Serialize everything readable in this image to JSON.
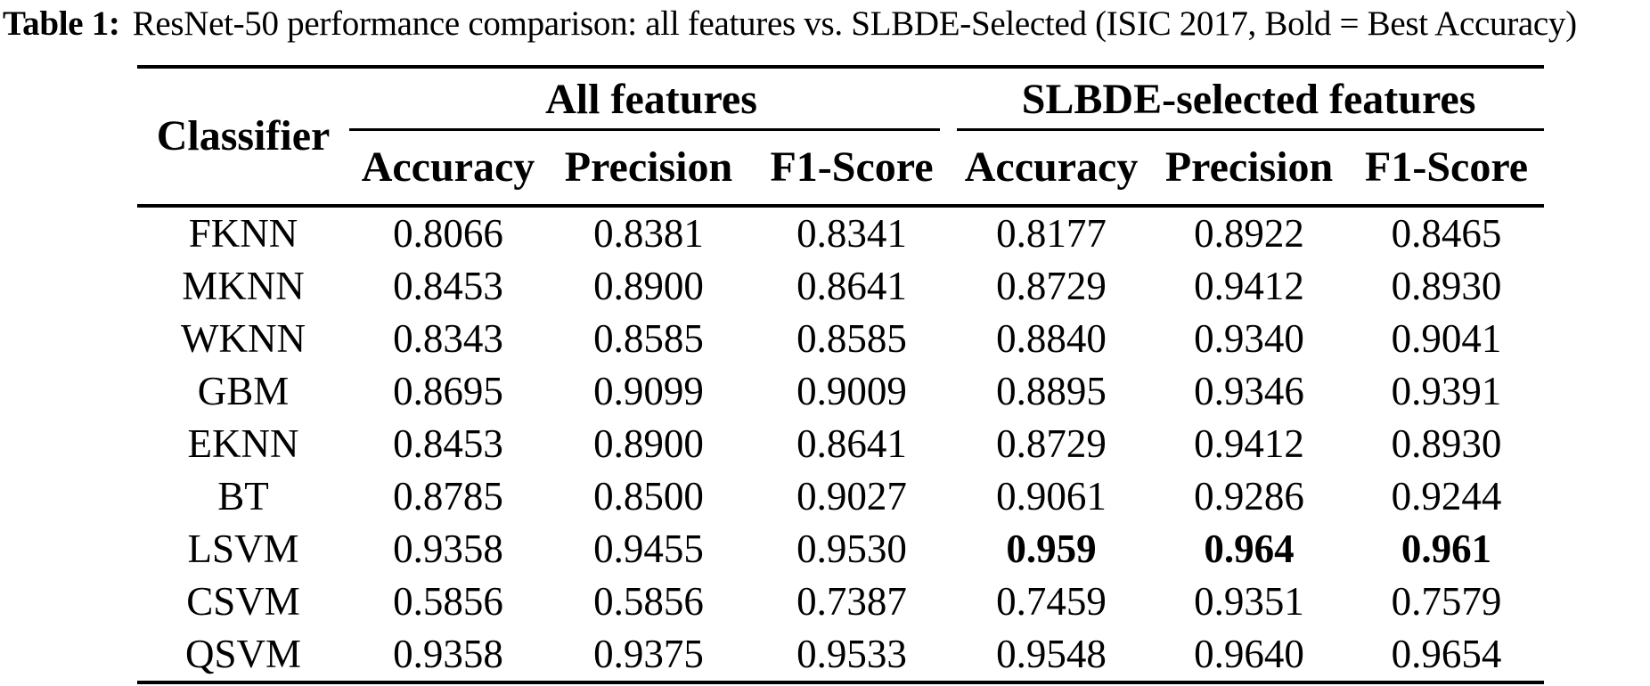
{
  "caption": {
    "label": "Table 1:",
    "text": "ResNet-50 performance comparison: all features vs. SLBDE-Selected (ISIC 2017, Bold = Best Accuracy)"
  },
  "table": {
    "corner_header": "Classifier",
    "groups": [
      {
        "label": "All features",
        "columns": [
          "Accuracy",
          "Precision",
          "F1-Score"
        ]
      },
      {
        "label": "SLBDE-selected features",
        "columns": [
          "Accuracy",
          "Precision",
          "F1-Score"
        ]
      }
    ],
    "bold_note": "LSVM row SLBDE-selected values are bold (best accuracy)",
    "rows": [
      {
        "classifier": "FKNN",
        "all": [
          "0.8066",
          "0.8381",
          "0.8341"
        ],
        "slbde": [
          "0.8177",
          "0.8922",
          "0.8465"
        ]
      },
      {
        "classifier": "MKNN",
        "all": [
          "0.8453",
          "0.8900",
          "0.8641"
        ],
        "slbde": [
          "0.8729",
          "0.9412",
          "0.8930"
        ]
      },
      {
        "classifier": "WKNN",
        "all": [
          "0.8343",
          "0.8585",
          "0.8585"
        ],
        "slbde": [
          "0.8840",
          "0.9340",
          "0.9041"
        ]
      },
      {
        "classifier": "GBM",
        "all": [
          "0.8695",
          "0.9099",
          "0.9009"
        ],
        "slbde": [
          "0.8895",
          "0.9346",
          "0.9391"
        ]
      },
      {
        "classifier": "EKNN",
        "all": [
          "0.8453",
          "0.8900",
          "0.8641"
        ],
        "slbde": [
          "0.8729",
          "0.9412",
          "0.8930"
        ]
      },
      {
        "classifier": "BT",
        "all": [
          "0.8785",
          "0.8500",
          "0.9027"
        ],
        "slbde": [
          "0.9061",
          "0.9286",
          "0.9244"
        ]
      },
      {
        "classifier": "LSVM",
        "all": [
          "0.9358",
          "0.9455",
          "0.9530"
        ],
        "slbde": [
          "0.959",
          "0.964",
          "0.961"
        ]
      },
      {
        "classifier": "CSVM",
        "all": [
          "0.5856",
          "0.5856",
          "0.7387"
        ],
        "slbde": [
          "0.7459",
          "0.9351",
          "0.7579"
        ]
      },
      {
        "classifier": "QSVM",
        "all": [
          "0.9358",
          "0.9375",
          "0.9533"
        ],
        "slbde": [
          "0.9548",
          "0.9640",
          "0.9654"
        ]
      }
    ]
  },
  "colors": {
    "text": "#000000",
    "background": "#ffffff",
    "rule": "#000000"
  }
}
